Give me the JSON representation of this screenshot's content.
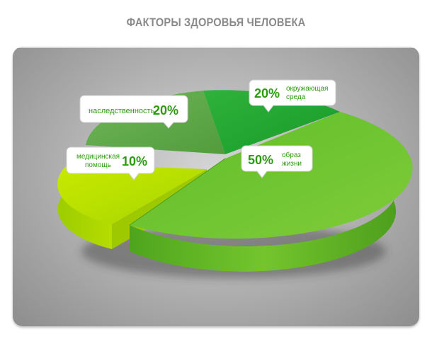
{
  "title": "ФАКТОРЫ ЗДОРОВЬЯ ЧЕЛОВЕКА",
  "colors": {
    "background": "#ffffff",
    "panel": "#b6b6b6",
    "title": "#8a8a8a",
    "label_text": "#2e9a12"
  },
  "chart_data": {
    "type": "pie",
    "title": "ФАКТОРЫ ЗДОРОВЬЯ ЧЕЛОВЕКА",
    "unit": "%",
    "slices": [
      {
        "label": "образ жизни",
        "label_lines": [
          "образ",
          "жизни"
        ],
        "value": 50,
        "value_label": "50%",
        "color": "#6cc22c"
      },
      {
        "label": "медицинская помощь",
        "label_lines": [
          "медицинская",
          "помощь"
        ],
        "value": 10,
        "value_label": "10%",
        "color": "#b9e000"
      },
      {
        "label": "наследственность",
        "label_lines": [
          "наследственность"
        ],
        "value": 20,
        "value_label": "20%",
        "color": "#5aab3d"
      },
      {
        "label": "окружающая среда",
        "label_lines": [
          "окружающая",
          "среда"
        ],
        "value": 20,
        "value_label": "20%",
        "color": "#21a533"
      }
    ]
  }
}
